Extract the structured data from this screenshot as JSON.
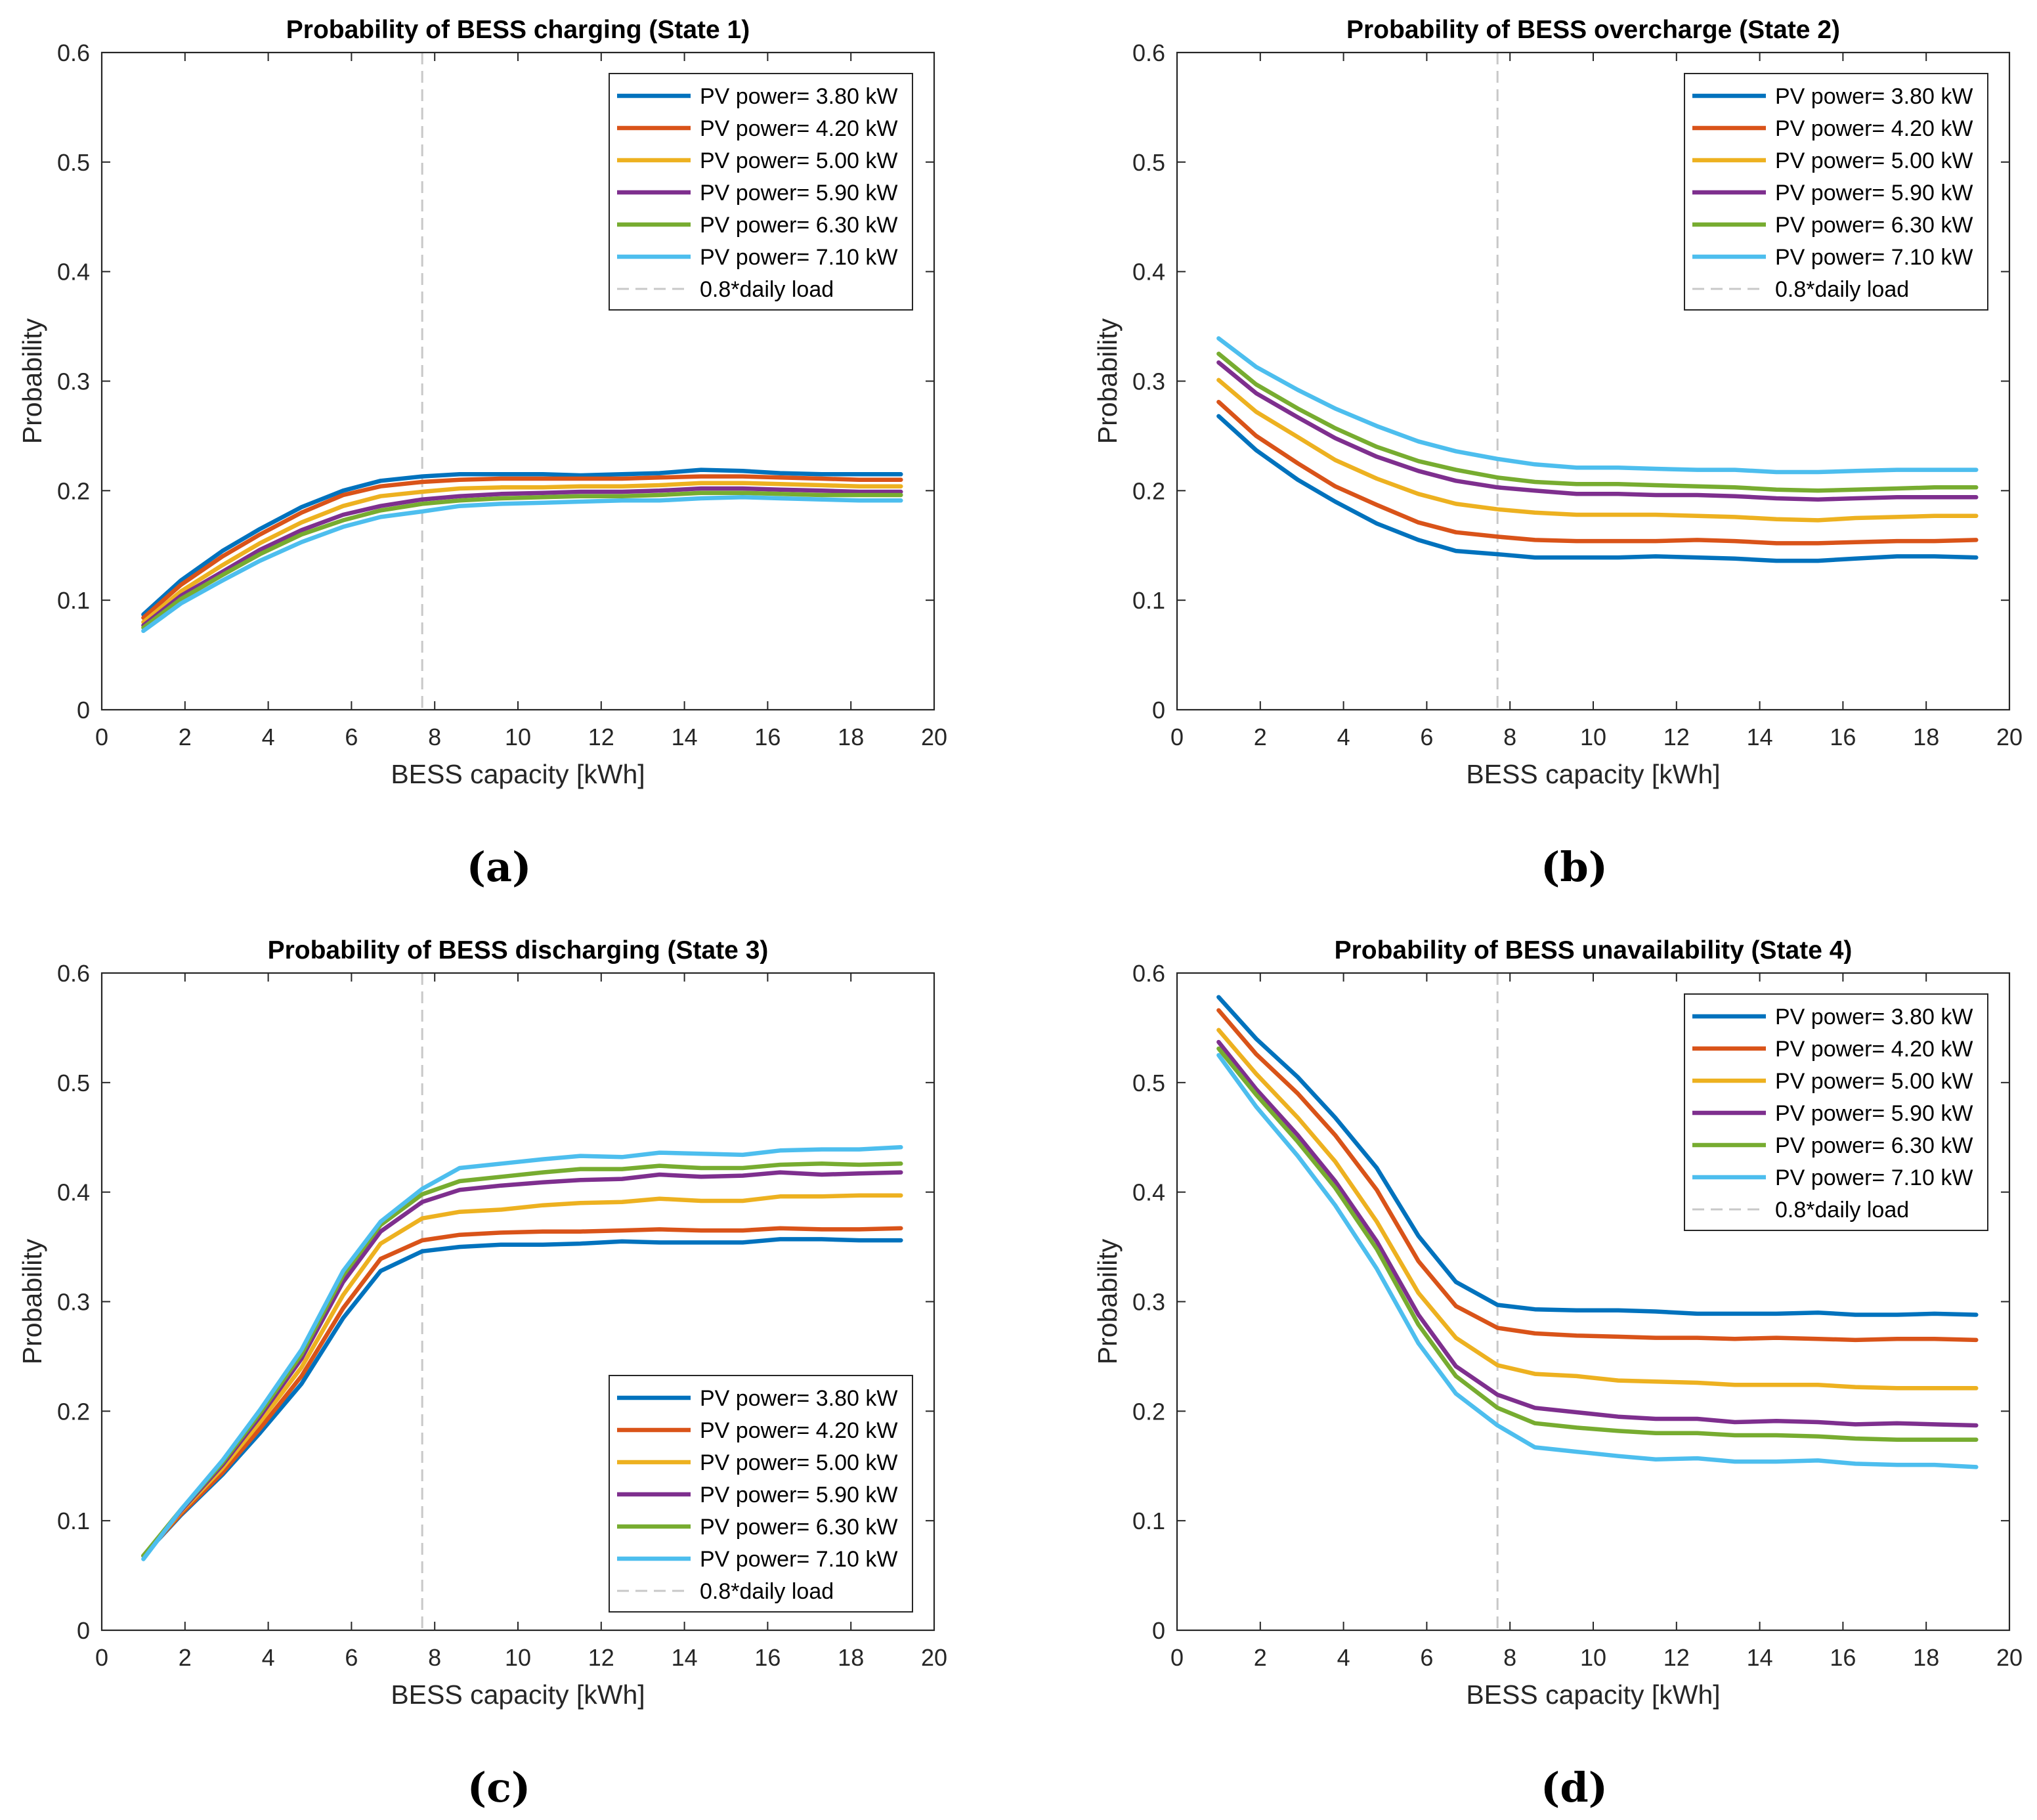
{
  "chart_data": [
    {
      "type": "line",
      "panel": "(a)",
      "title": "Probability of BESS charging (State 1)",
      "xlabel": "BESS capacity [kWh]",
      "ylabel": "Probability",
      "xlim": [
        0,
        20
      ],
      "ylim": [
        0,
        0.6
      ],
      "xticks": [
        0,
        2,
        4,
        6,
        8,
        10,
        12,
        14,
        16,
        18,
        20
      ],
      "yticks": [
        0,
        0.1,
        0.2,
        0.3,
        0.4,
        0.5,
        0.6
      ],
      "ytick_labels": [
        "0",
        "0.1",
        "0.2",
        "0.3",
        "0.4",
        "0.5",
        "0.6"
      ],
      "legend_position": "top-right",
      "x": [
        1,
        1.9,
        2.9,
        3.8,
        4.8,
        5.8,
        6.7,
        7.7,
        8.6,
        9.6,
        10.6,
        11.5,
        12.5,
        13.4,
        14.4,
        15.4,
        16.3,
        17.3,
        18.2,
        19.2
      ],
      "reference_line": {
        "label": "0.8*daily load",
        "x": 7.7,
        "color": "#c8c8c8"
      },
      "series": [
        {
          "name": "PV power= 3.80 kW",
          "color": "#0072BD",
          "values": [
            0.087,
            0.118,
            0.145,
            0.165,
            0.185,
            0.2,
            0.209,
            0.213,
            0.215,
            0.215,
            0.215,
            0.214,
            0.215,
            0.216,
            0.219,
            0.218,
            0.216,
            0.215,
            0.215,
            0.215
          ]
        },
        {
          "name": "PV power= 4.20 kW",
          "color": "#D95319",
          "values": [
            0.084,
            0.114,
            0.14,
            0.16,
            0.18,
            0.196,
            0.204,
            0.208,
            0.21,
            0.211,
            0.211,
            0.211,
            0.211,
            0.212,
            0.213,
            0.213,
            0.212,
            0.211,
            0.21,
            0.21
          ]
        },
        {
          "name": "PV power= 5.00 kW",
          "color": "#EDB120",
          "values": [
            0.08,
            0.108,
            0.132,
            0.152,
            0.171,
            0.186,
            0.195,
            0.199,
            0.202,
            0.203,
            0.203,
            0.204,
            0.204,
            0.205,
            0.207,
            0.207,
            0.206,
            0.205,
            0.204,
            0.204
          ]
        },
        {
          "name": "PV power= 5.90 kW",
          "color": "#7E2F8E",
          "values": [
            0.077,
            0.104,
            0.126,
            0.146,
            0.164,
            0.178,
            0.186,
            0.192,
            0.195,
            0.197,
            0.198,
            0.199,
            0.199,
            0.2,
            0.202,
            0.202,
            0.201,
            0.2,
            0.199,
            0.199
          ]
        },
        {
          "name": "PV power= 6.30 kW",
          "color": "#77AC30",
          "values": [
            0.075,
            0.101,
            0.123,
            0.142,
            0.16,
            0.173,
            0.182,
            0.188,
            0.191,
            0.193,
            0.194,
            0.195,
            0.195,
            0.196,
            0.198,
            0.198,
            0.197,
            0.196,
            0.196,
            0.196
          ]
        },
        {
          "name": "PV power= 7.10 kW",
          "color": "#4DBEEE",
          "values": [
            0.072,
            0.097,
            0.118,
            0.136,
            0.153,
            0.167,
            0.176,
            0.181,
            0.186,
            0.188,
            0.189,
            0.19,
            0.191,
            0.191,
            0.193,
            0.194,
            0.193,
            0.192,
            0.191,
            0.191
          ]
        }
      ]
    },
    {
      "type": "line",
      "panel": "(b)",
      "title": "Probability of BESS overcharge (State 2)",
      "xlabel": "BESS capacity [kWh]",
      "ylabel": "Probability",
      "xlim": [
        0,
        20
      ],
      "ylim": [
        0,
        0.6
      ],
      "xticks": [
        0,
        2,
        4,
        6,
        8,
        10,
        12,
        14,
        16,
        18,
        20
      ],
      "yticks": [
        0,
        0.1,
        0.2,
        0.3,
        0.4,
        0.5,
        0.6
      ],
      "ytick_labels": [
        "0",
        "0.1",
        "0.2",
        "0.3",
        "0.4",
        "0.5",
        "0.6"
      ],
      "legend_position": "top-right",
      "x": [
        1,
        1.9,
        2.9,
        3.8,
        4.8,
        5.8,
        6.7,
        7.7,
        8.6,
        9.6,
        10.6,
        11.5,
        12.5,
        13.4,
        14.4,
        15.4,
        16.3,
        17.3,
        18.2,
        19.2
      ],
      "reference_line": {
        "label": "0.8*daily load",
        "x": 7.7,
        "color": "#c8c8c8"
      },
      "series": [
        {
          "name": "PV power= 3.80 kW",
          "color": "#0072BD",
          "values": [
            0.268,
            0.237,
            0.21,
            0.19,
            0.17,
            0.155,
            0.145,
            0.142,
            0.139,
            0.139,
            0.139,
            0.14,
            0.139,
            0.138,
            0.136,
            0.136,
            0.138,
            0.14,
            0.14,
            0.139
          ]
        },
        {
          "name": "PV power= 4.20 kW",
          "color": "#D95319",
          "values": [
            0.281,
            0.25,
            0.225,
            0.204,
            0.187,
            0.171,
            0.162,
            0.158,
            0.155,
            0.154,
            0.154,
            0.154,
            0.155,
            0.154,
            0.152,
            0.152,
            0.153,
            0.154,
            0.154,
            0.155
          ]
        },
        {
          "name": "PV power= 5.00 kW",
          "color": "#EDB120",
          "values": [
            0.301,
            0.272,
            0.249,
            0.228,
            0.211,
            0.197,
            0.188,
            0.183,
            0.18,
            0.178,
            0.178,
            0.178,
            0.177,
            0.176,
            0.174,
            0.173,
            0.175,
            0.176,
            0.177,
            0.177
          ]
        },
        {
          "name": "PV power= 5.90 kW",
          "color": "#7E2F8E",
          "values": [
            0.317,
            0.289,
            0.267,
            0.248,
            0.231,
            0.218,
            0.209,
            0.203,
            0.2,
            0.197,
            0.197,
            0.196,
            0.196,
            0.195,
            0.193,
            0.192,
            0.193,
            0.194,
            0.194,
            0.194
          ]
        },
        {
          "name": "PV power= 6.30 kW",
          "color": "#77AC30",
          "values": [
            0.325,
            0.297,
            0.275,
            0.257,
            0.24,
            0.227,
            0.219,
            0.212,
            0.208,
            0.206,
            0.206,
            0.205,
            0.204,
            0.203,
            0.201,
            0.2,
            0.201,
            0.202,
            0.203,
            0.203
          ]
        },
        {
          "name": "PV power= 7.10 kW",
          "color": "#4DBEEE",
          "values": [
            0.339,
            0.313,
            0.292,
            0.275,
            0.259,
            0.245,
            0.236,
            0.229,
            0.224,
            0.221,
            0.221,
            0.22,
            0.219,
            0.219,
            0.217,
            0.217,
            0.218,
            0.219,
            0.219,
            0.219
          ]
        }
      ]
    },
    {
      "type": "line",
      "panel": "(c)",
      "title": "Probability of BESS discharging (State 3)",
      "xlabel": "BESS capacity [kWh]",
      "ylabel": "Probability",
      "xlim": [
        0,
        20
      ],
      "ylim": [
        0,
        0.6
      ],
      "xticks": [
        0,
        2,
        4,
        6,
        8,
        10,
        12,
        14,
        16,
        18,
        20
      ],
      "yticks": [
        0,
        0.1,
        0.2,
        0.3,
        0.4,
        0.5,
        0.6
      ],
      "ytick_labels": [
        "0",
        "0.1",
        "0.2",
        "0.3",
        "0.4",
        "0.5",
        "0.6"
      ],
      "legend_position": "bottom-right",
      "x": [
        1,
        1.9,
        2.9,
        3.8,
        4.8,
        5.8,
        6.7,
        7.7,
        8.6,
        9.6,
        10.6,
        11.5,
        12.5,
        13.4,
        14.4,
        15.4,
        16.3,
        17.3,
        18.2,
        19.2
      ],
      "reference_line": {
        "label": "0.8*daily load",
        "x": 7.7,
        "color": "#c8c8c8"
      },
      "series": [
        {
          "name": "PV power= 3.80 kW",
          "color": "#0072BD",
          "values": [
            0.068,
            0.105,
            0.142,
            0.18,
            0.225,
            0.285,
            0.328,
            0.346,
            0.35,
            0.352,
            0.352,
            0.353,
            0.355,
            0.354,
            0.354,
            0.354,
            0.357,
            0.357,
            0.356,
            0.356
          ]
        },
        {
          "name": "PV power= 4.20 kW",
          "color": "#D95319",
          "values": [
            0.068,
            0.106,
            0.144,
            0.184,
            0.232,
            0.294,
            0.339,
            0.356,
            0.361,
            0.363,
            0.364,
            0.364,
            0.365,
            0.366,
            0.365,
            0.365,
            0.367,
            0.366,
            0.366,
            0.367
          ]
        },
        {
          "name": "PV power= 5.00 kW",
          "color": "#EDB120",
          "values": [
            0.068,
            0.108,
            0.148,
            0.19,
            0.24,
            0.306,
            0.353,
            0.376,
            0.382,
            0.384,
            0.388,
            0.39,
            0.391,
            0.394,
            0.392,
            0.392,
            0.396,
            0.396,
            0.397,
            0.397
          ]
        },
        {
          "name": "PV power= 5.90 kW",
          "color": "#7E2F8E",
          "values": [
            0.068,
            0.109,
            0.151,
            0.195,
            0.248,
            0.318,
            0.364,
            0.391,
            0.402,
            0.406,
            0.409,
            0.411,
            0.412,
            0.416,
            0.414,
            0.415,
            0.418,
            0.416,
            0.417,
            0.418
          ]
        },
        {
          "name": "PV power= 6.30 kW",
          "color": "#77AC30",
          "values": [
            0.068,
            0.11,
            0.153,
            0.198,
            0.252,
            0.324,
            0.37,
            0.398,
            0.41,
            0.414,
            0.418,
            0.421,
            0.421,
            0.424,
            0.422,
            0.422,
            0.425,
            0.426,
            0.425,
            0.426
          ]
        },
        {
          "name": "PV power= 7.10 kW",
          "color": "#4DBEEE",
          "values": [
            0.065,
            0.11,
            0.155,
            0.201,
            0.256,
            0.328,
            0.373,
            0.403,
            0.422,
            0.426,
            0.43,
            0.433,
            0.432,
            0.436,
            0.435,
            0.434,
            0.438,
            0.439,
            0.439,
            0.441
          ]
        }
      ]
    },
    {
      "type": "line",
      "panel": "(d)",
      "title": "Probability of BESS unavailability (State 4)",
      "xlabel": "BESS capacity [kWh]",
      "ylabel": "Probability",
      "xlim": [
        0,
        20
      ],
      "ylim": [
        0,
        0.6
      ],
      "xticks": [
        0,
        2,
        4,
        6,
        8,
        10,
        12,
        14,
        16,
        18,
        20
      ],
      "yticks": [
        0,
        0.1,
        0.2,
        0.3,
        0.4,
        0.5,
        0.6
      ],
      "ytick_labels": [
        "0",
        "0.1",
        "0.2",
        "0.3",
        "0.4",
        "0.5",
        "0.6"
      ],
      "legend_position": "top-right",
      "x": [
        1,
        1.9,
        2.9,
        3.8,
        4.8,
        5.8,
        6.7,
        7.7,
        8.6,
        9.6,
        10.6,
        11.5,
        12.5,
        13.4,
        14.4,
        15.4,
        16.3,
        17.3,
        18.2,
        19.2
      ],
      "reference_line": {
        "label": "0.8*daily load",
        "x": 7.7,
        "color": "#c8c8c8"
      },
      "series": [
        {
          "name": "PV power= 3.80 kW",
          "color": "#0072BD",
          "values": [
            0.578,
            0.54,
            0.505,
            0.468,
            0.422,
            0.36,
            0.318,
            0.297,
            0.293,
            0.292,
            0.292,
            0.291,
            0.289,
            0.289,
            0.289,
            0.29,
            0.288,
            0.288,
            0.289,
            0.288
          ]
        },
        {
          "name": "PV power= 4.20 kW",
          "color": "#D95319",
          "values": [
            0.566,
            0.526,
            0.49,
            0.452,
            0.402,
            0.337,
            0.296,
            0.276,
            0.271,
            0.269,
            0.268,
            0.267,
            0.267,
            0.266,
            0.267,
            0.266,
            0.265,
            0.266,
            0.266,
            0.265
          ]
        },
        {
          "name": "PV power= 5.00 kW",
          "color": "#EDB120",
          "values": [
            0.548,
            0.508,
            0.468,
            0.428,
            0.373,
            0.308,
            0.267,
            0.242,
            0.234,
            0.232,
            0.228,
            0.227,
            0.226,
            0.224,
            0.224,
            0.224,
            0.222,
            0.221,
            0.221,
            0.221
          ]
        },
        {
          "name": "PV power= 5.90 kW",
          "color": "#7E2F8E",
          "values": [
            0.537,
            0.494,
            0.452,
            0.41,
            0.355,
            0.288,
            0.241,
            0.215,
            0.203,
            0.199,
            0.195,
            0.193,
            0.193,
            0.19,
            0.191,
            0.19,
            0.188,
            0.189,
            0.188,
            0.187
          ]
        },
        {
          "name": "PV power= 6.30 kW",
          "color": "#77AC30",
          "values": [
            0.531,
            0.489,
            0.446,
            0.404,
            0.348,
            0.279,
            0.232,
            0.203,
            0.189,
            0.185,
            0.182,
            0.18,
            0.18,
            0.178,
            0.178,
            0.177,
            0.175,
            0.174,
            0.174,
            0.174
          ]
        },
        {
          "name": "PV power= 7.10 kW",
          "color": "#4DBEEE",
          "values": [
            0.525,
            0.478,
            0.433,
            0.388,
            0.33,
            0.262,
            0.216,
            0.187,
            0.167,
            0.163,
            0.159,
            0.156,
            0.157,
            0.154,
            0.154,
            0.155,
            0.152,
            0.151,
            0.151,
            0.149
          ]
        }
      ]
    }
  ]
}
